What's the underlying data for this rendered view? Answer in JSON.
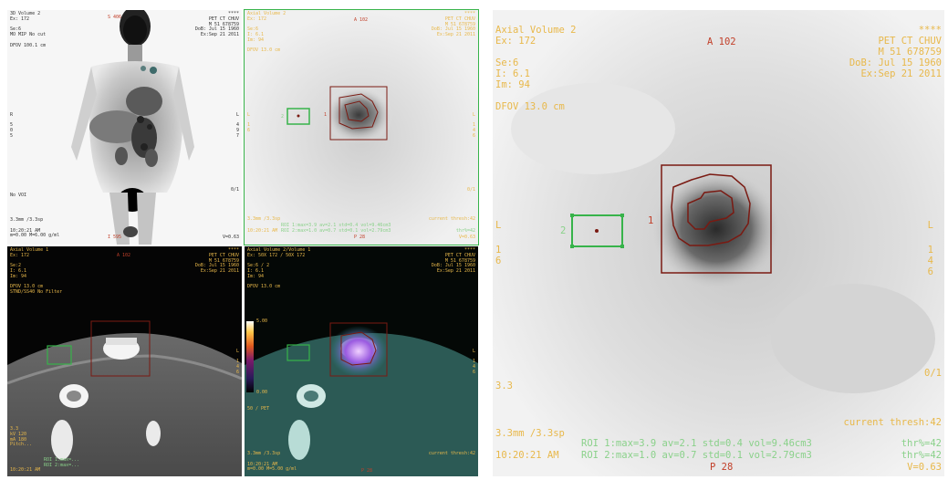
{
  "colors": {
    "overlay_yellow": "#e8b84a",
    "roi_green": "#37b34a",
    "roi_red": "#7a1a12",
    "label_red": "#c2402a",
    "status_green": "#8ad18a"
  },
  "vp1": {
    "tl": "3D Volume 2\nEx: 172\n\nSe:6\nMO MIP No cut\n\nDFOV 100.1 cm",
    "tc": "S 406",
    "tr": "****\nPET CT CHUV\nM 51 678759\nDoB: Jul 15 1960\nEx:Sep 21 2011",
    "left_r": "R",
    "left_nums": "5\n0\n5",
    "right_l": "L",
    "right_nums": "4\n9\n7",
    "no_voi": "No VOI",
    "frame": "0/1",
    "bl": "3.3mm /3.3sp\n\n10:20:21 AM\nm=0.00 M=6.00 g/ml",
    "bc": "I 595",
    "br": "V=0.63"
  },
  "vp2": {
    "tl": "Axial Volume 2\nEx: 172\n\nSe:6\nI: 6.1\nIm: 94\n\nDFOV 13.0 cm",
    "tc": "A 102",
    "tr": "****\nPET CT CHUV\nM 51 678759\nDoB: Jul 15 1960\nEx:Sep 21 2011",
    "left_l": "L",
    "left_nums": "1\n6",
    "right_l": "L",
    "right_nums": "1\n4\n6",
    "roi1": "1",
    "roi2": "2",
    "frame": "0/1",
    "bl": "3.3mm /3.3sp",
    "roi_line1": "ROI 1:max=3.9 av=2.1 std=0.4 vol=9.46cm3",
    "roi_line2": "ROI 2:max=1.0 av=0.7 std=0.1 vol=2.79cm3",
    "current_thresh": "current thresh:42",
    "thr": "thr%=42",
    "time": "10:20:21 AM",
    "bc": "P 28",
    "br": "V=0.63"
  },
  "vp3": {
    "tl": "Axial Volume 1\nEx: 172\n\nSe:2\nI: 6.1\nIm: 94\n\nDFOV 13.0 cm\nSTND/SS40 No Filter",
    "tc": "A 102",
    "tr": "****\nPET CT CHUV\nM 51 678759\nDoB: Jul 15 1960\nEx:Sep 21 2011",
    "right_l": "L",
    "right_nums": "1\n4\n6",
    "bl": "3.3\nkV 120\nmA 180\nPitch...",
    "roi_line1": "ROI 1:max=...",
    "roi_line2": "ROI 2:max=...",
    "time": "10:20:21 AM"
  },
  "vp4": {
    "tl": "Axial Volume 2/Volume 1\nEx: 50X 172 / 50X 172\n\nSe:6 / 2\nI: 6.1\nIm: 94\n\nDFOV 13.0 cm",
    "tr": "****\nPET CT CHUV\nM 51 678759\nDoB: Jul 15 1960\nEx:Sep 21 2011",
    "scale_max": "5.00",
    "scale_min": "0.00",
    "right_l": "L",
    "right_nums": "1\n4\n6",
    "bl": "3.3mm /3.3sp\n\n10:20:21 AM\nm=0.00 M=5.00 g/ml",
    "current_thresh": "current thresh:42",
    "bc": "P 28",
    "ratio": "50 / PET"
  },
  "vp5": {
    "tl": "Axial Volume 2\nEx: 172\n\nSe:6\nI: 6.1\nIm: 94\n\nDFOV 13.0 cm",
    "tc": "A 102",
    "tr": "****\nPET CT CHUV\nM 51 678759\nDoB: Jul 15 1960\nEx:Sep 21 2011",
    "left_l": "L",
    "left_nums": "1\n6",
    "right_l": "L",
    "right_nums": "1\n4\n6",
    "roi1": "1",
    "roi2": "2",
    "frame": "0/1",
    "side_num": "3.3",
    "current_thresh": "current thresh:42",
    "bl": "3.3mm /3.3sp",
    "roi_line1": "ROI 1:max=3.9 av=2.1 std=0.4 vol=9.46cm3",
    "roi_line2": "ROI 2:max=1.0 av=0.7 std=0.1 vol=2.79cm3",
    "thr1": "thr%=42",
    "thr2": "thr%=42",
    "time": "10:20:21 AM",
    "bc": "P 28",
    "br": "V=0.63"
  }
}
